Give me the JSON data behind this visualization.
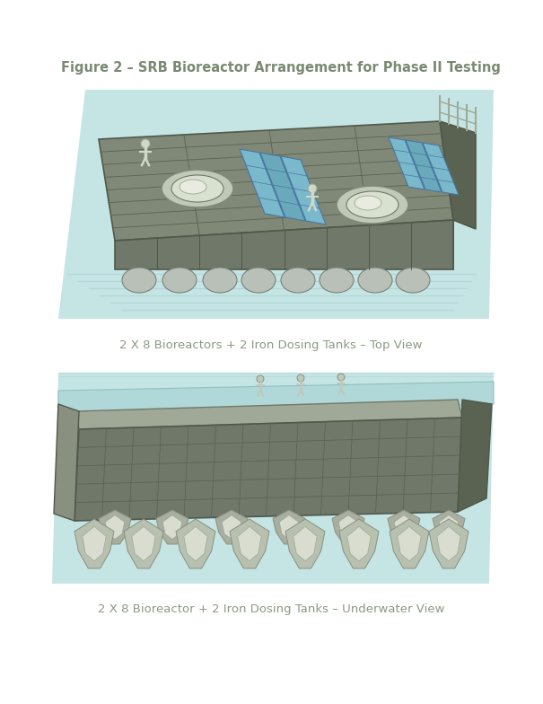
{
  "title": "Figure 2 – SRB Bioreactor Arrangement for Phase II Testing",
  "title_color": "#7a8a72",
  "title_fontsize": 10.5,
  "caption_top": "2 X 8 Bioreactors + 2 Iron Dosing Tanks – Top View",
  "caption_bottom": "2 X 8 Bioreactor + 2 Iron Dosing Tanks – Underwater View",
  "caption_color": "#8a9a82",
  "caption_fontsize": 9.5,
  "bg_color": "#ffffff",
  "water_color": "#c5e5e5",
  "platform_dark": "#70786a",
  "platform_top": "#808878",
  "platform_side": "#686e60",
  "platform_edge": "#50584a",
  "platform_right": "#5a6252",
  "solar_blue": "#7ab8cc",
  "solar_dark": "#6098b0",
  "pontoon_fill": "#c8c8b8",
  "pontoon_edge": "#909088",
  "person_color": "#c8d0c0",
  "figure_size": [
    6.05,
    7.84
  ],
  "dpi": 100
}
